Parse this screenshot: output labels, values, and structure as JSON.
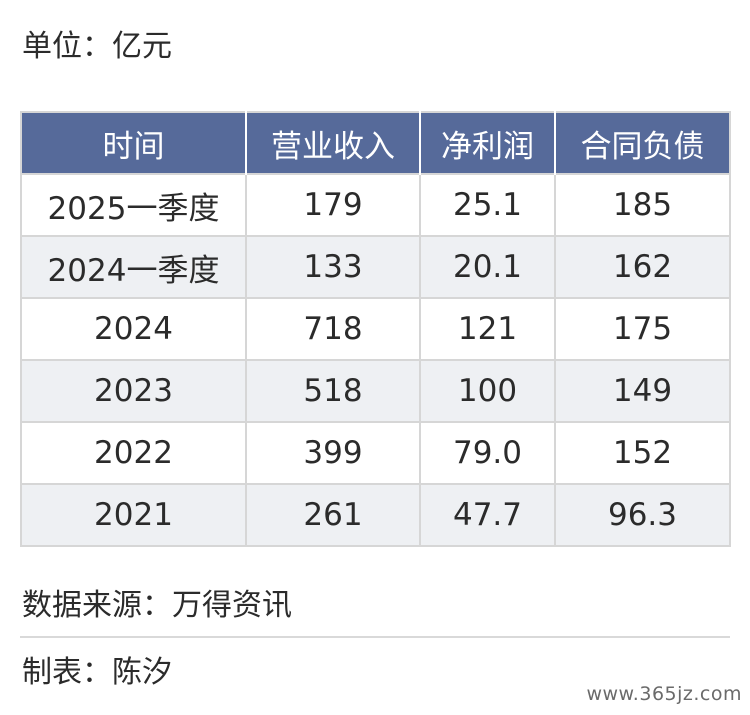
{
  "unit": "单位：亿元",
  "table": {
    "headers": [
      "时间",
      "营业收入",
      "净利润",
      "合同负债"
    ],
    "rows": [
      [
        "2025一季度",
        "179",
        "25.1",
        "185"
      ],
      [
        "2024一季度",
        "133",
        "20.1",
        "162"
      ],
      [
        "2024",
        "718",
        "121",
        "175"
      ],
      [
        "2023",
        "518",
        "100",
        "149"
      ],
      [
        "2022",
        "399",
        "79.0",
        "152"
      ],
      [
        "2021",
        "261",
        "47.7",
        "96.3"
      ]
    ]
  },
  "source": "数据来源：万得资讯",
  "author": "制表：陈汐",
  "watermark": "www.365jz.com",
  "colors": {
    "header_bg": "#566a9a",
    "stripe_bg": "#eef0f3",
    "border": "#d6d6d6"
  }
}
